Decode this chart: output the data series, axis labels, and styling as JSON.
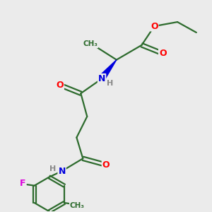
{
  "bg_color": "#ebebeb",
  "bond_color": "#2d6b2d",
  "bond_width": 1.6,
  "atom_colors": {
    "O": "#ff0000",
    "N": "#0000dd",
    "F": "#dd00dd",
    "H": "#888888",
    "C": "#2d6b2d"
  }
}
